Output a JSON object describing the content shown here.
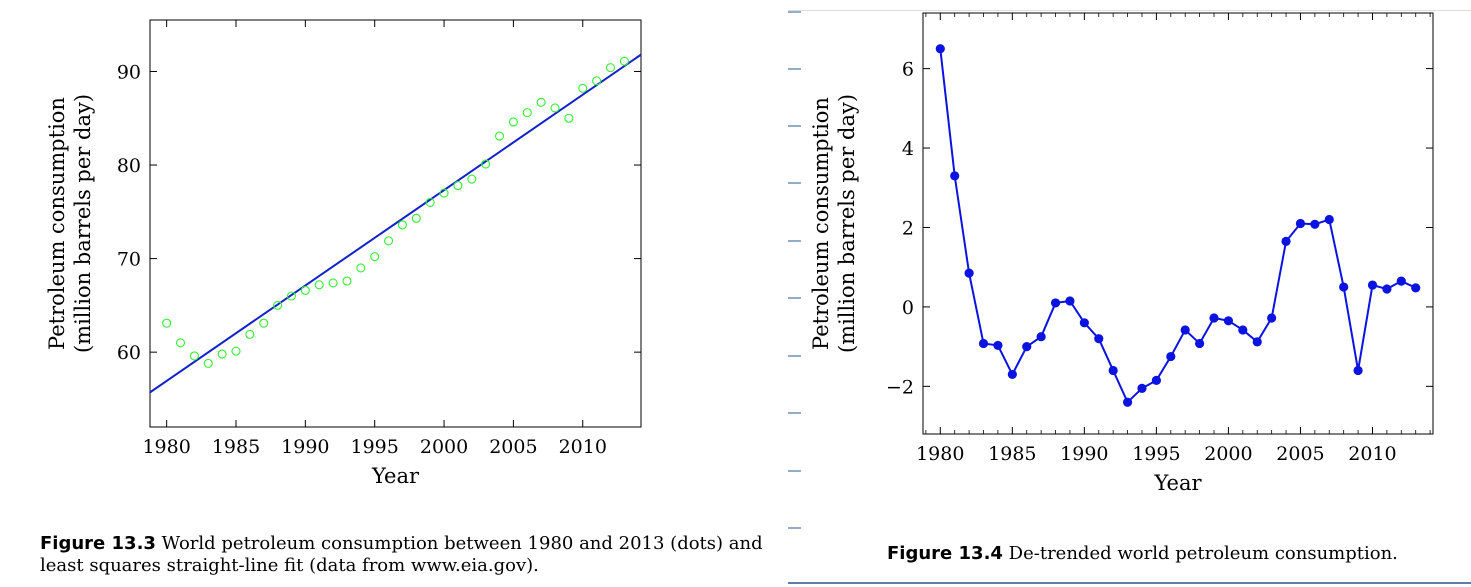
{
  "colors": {
    "scatter": "#33ee33",
    "fit_line": "#1122cc",
    "series": "#0b13e0",
    "rule": "#5b7fa6"
  },
  "captions": {
    "left_label": "Figure 13.3",
    "left_text": "World petroleum consumption between 1980 and 2013 (dots) and least squares straight-line fit (data from www.eia.gov).",
    "right_label": "Figure 13.4",
    "right_text": "De-trended world petroleum consumption."
  },
  "chart_data": [
    {
      "type": "scatter",
      "xlabel": "Year",
      "ylabel_lines": [
        "Petroleum consumption",
        "(million barrels per day)"
      ],
      "xlim": [
        1978.8,
        2014.2
      ],
      "ylim": [
        52,
        95.5
      ],
      "xticks": [
        1980,
        1985,
        1990,
        1995,
        2000,
        2005,
        2010
      ],
      "yticks": [
        60,
        70,
        80,
        90
      ],
      "grid": false,
      "x": [
        1980,
        1981,
        1982,
        1983,
        1984,
        1985,
        1986,
        1987,
        1988,
        1989,
        1990,
        1991,
        1992,
        1993,
        1994,
        1995,
        1996,
        1997,
        1998,
        1999,
        2000,
        2001,
        2002,
        2003,
        2004,
        2005,
        2006,
        2007,
        2008,
        2009,
        2010,
        2011,
        2012,
        2013
      ],
      "values": [
        63.1,
        61.0,
        59.6,
        58.8,
        59.8,
        60.1,
        61.9,
        63.1,
        65.0,
        66.0,
        66.6,
        67.2,
        67.4,
        67.6,
        69.0,
        70.2,
        71.9,
        73.6,
        74.3,
        76.0,
        77.0,
        77.8,
        78.5,
        80.1,
        83.1,
        84.6,
        85.6,
        86.7,
        86.1,
        85.0,
        88.2,
        89.0,
        90.4,
        91.1
      ],
      "fit_line": {
        "x": [
          1978.8,
          2014.2
        ],
        "y": [
          55.7,
          91.8
        ]
      }
    },
    {
      "type": "line",
      "xlabel": "Year",
      "ylabel_lines": [
        "Petroleum consumption",
        "(million barrels per day)"
      ],
      "xlim": [
        1978.8,
        2014.2
      ],
      "ylim": [
        -3.2,
        7.4
      ],
      "xticks": [
        1980,
        1985,
        1990,
        1995,
        2000,
        2005,
        2010
      ],
      "yticks": [
        -2,
        0,
        2,
        4,
        6
      ],
      "ytick_labels": [
        "−2",
        "0",
        "2",
        "4",
        "6"
      ],
      "grid": false,
      "x": [
        1980,
        1981,
        1982,
        1983,
        1984,
        1985,
        1986,
        1987,
        1988,
        1989,
        1990,
        1991,
        1992,
        1993,
        1994,
        1995,
        1996,
        1997,
        1998,
        1999,
        2000,
        2001,
        2002,
        2003,
        2004,
        2005,
        2006,
        2007,
        2008,
        2009,
        2010,
        2011,
        2012,
        2013
      ],
      "values": [
        6.5,
        3.3,
        0.85,
        -0.92,
        -0.97,
        -1.7,
        -1.0,
        -0.75,
        0.1,
        0.15,
        -0.4,
        -0.8,
        -1.6,
        -2.4,
        -2.05,
        -1.85,
        -1.25,
        -0.58,
        -0.92,
        -0.28,
        -0.35,
        -0.58,
        -0.88,
        -0.28,
        1.65,
        2.1,
        2.08,
        2.2,
        0.5,
        -1.6,
        0.55,
        0.45,
        0.65,
        0.48
      ]
    }
  ]
}
